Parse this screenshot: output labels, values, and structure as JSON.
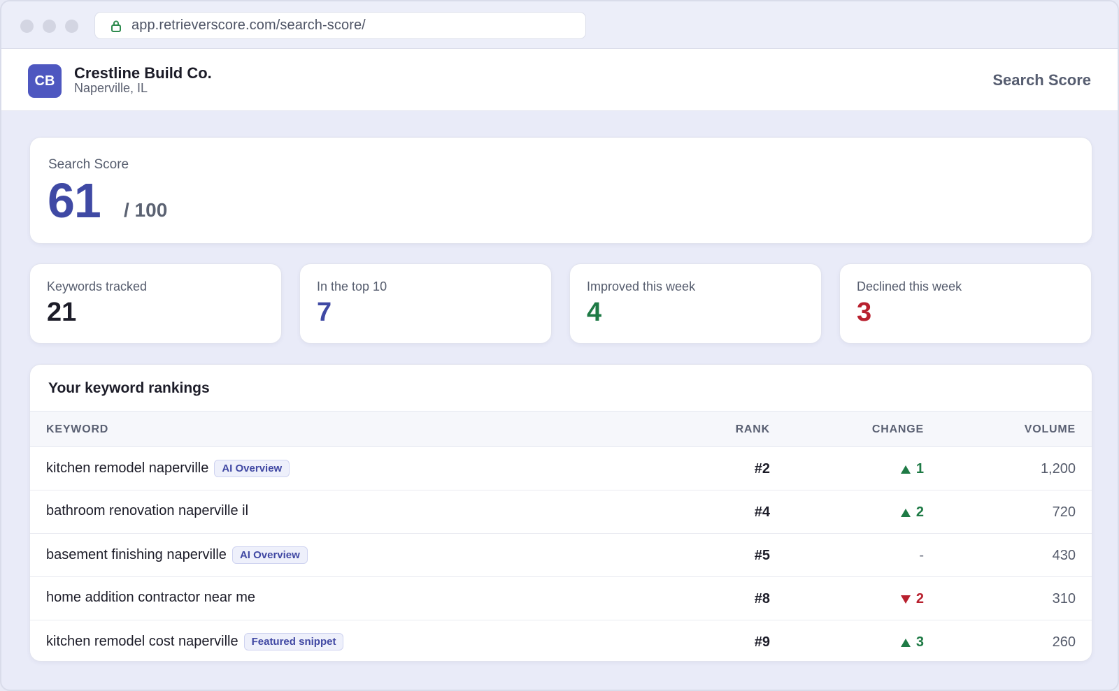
{
  "browser": {
    "url": "app.retrieverscore.com/search-score/"
  },
  "header": {
    "avatar_initials": "CB",
    "business_name": "Crestline Build Co.",
    "location": "Naperville, IL",
    "page_title": "Search Score"
  },
  "score": {
    "label": "Search Score",
    "value": "61",
    "max": "/ 100",
    "color": "#3f49a4"
  },
  "stats": [
    {
      "label": "Keywords tracked",
      "value": "21",
      "color": "#1c1c28"
    },
    {
      "label": "In the top 10",
      "value": "7",
      "color": "#3f49a4"
    },
    {
      "label": "Improved this week",
      "value": "4",
      "color": "#1e7a45"
    },
    {
      "label": "Declined this week",
      "value": "3",
      "color": "#b8202e"
    }
  ],
  "rankings": {
    "title": "Your keyword rankings",
    "columns": {
      "keyword": "KEYWORD",
      "rank": "RANK",
      "change": "CHANGE",
      "volume": "VOLUME"
    },
    "rows": [
      {
        "keyword": "kitchen remodel naperville",
        "badge": "AI Overview",
        "rank": "#2",
        "direction": "up",
        "change": "1",
        "volume": "1,200"
      },
      {
        "keyword": "bathroom renovation naperville il",
        "badge": "",
        "rank": "#4",
        "direction": "up",
        "change": "2",
        "volume": "720"
      },
      {
        "keyword": "basement finishing naperville",
        "badge": "AI Overview",
        "rank": "#5",
        "direction": "none",
        "change": "-",
        "volume": "430"
      },
      {
        "keyword": "home addition contractor near me",
        "badge": "",
        "rank": "#8",
        "direction": "down",
        "change": "2",
        "volume": "310"
      },
      {
        "keyword": "kitchen remodel cost naperville",
        "badge": "Featured snippet",
        "rank": "#9",
        "direction": "up",
        "change": "3",
        "volume": "260"
      }
    ]
  },
  "icons": {
    "lock": "lock-icon",
    "up": "arrow-up-icon",
    "down": "arrow-down-icon"
  }
}
